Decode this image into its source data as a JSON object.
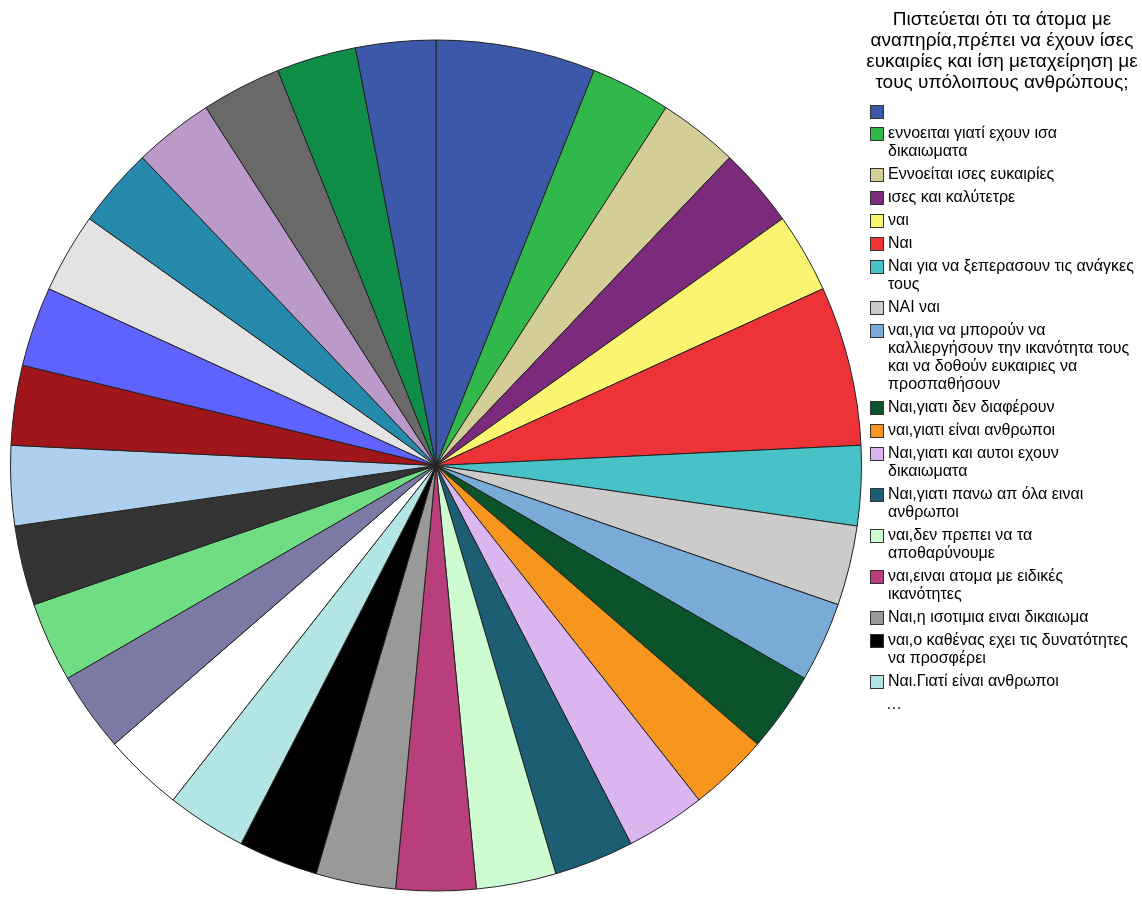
{
  "chart_data": {
    "type": "pie",
    "legend_title": "Πιστεύεται ότι τα άτομα με αναπηρία,πρέπει να έχουν ίσες ευκαιρίες και ίση μεταχείρηση με τους υπόλοιπους ανθρώπους;",
    "legend": "right",
    "categories": [
      null,
      "εννοειται γιατί εχουν ισα δικαιωματα",
      "Εννοείται ισες ευκαιρίες",
      "ισες και καλύτετρε",
      "ναι",
      "Ναι",
      "Ναι για να ξεπερασουν τις ανάγκες τους",
      "ΝΑΙ ναι",
      "ναι,για να μπορούν να καλλιεργήσουν την ικανότητα τους και να δοθούν ευκαιριες να προσπαθήσουν",
      "Ναι,γιατι δεν διαφέρουν",
      "ναι,γιατι είναι ανθρωποι",
      "Ναι,γιατι και αυτοι εχουν δικαιωματα",
      "Ναι,γιατι πανω απ όλα ειναι ανθρωποι",
      "ναι,δεν πρεπει να τα αποθαρύνουμε",
      "ναι,ειναι ατομα με ειδικές ικανότητες",
      "Ναι,η ισοτιμια ειναι δικαιωμα",
      "ναι,ο καθένας εχει τις δυνατότητες να προσφέρει",
      "Ναι.Γιατί είναι ανθρωποι",
      null,
      null,
      null,
      null,
      null,
      null,
      null,
      null,
      null,
      null,
      null,
      null,
      null
    ],
    "values": [
      6.06,
      3.03,
      3.03,
      3.03,
      3.03,
      6.06,
      3.03,
      3.03,
      3.03,
      3.03,
      3.03,
      3.03,
      3.03,
      3.03,
      3.03,
      3.03,
      3.03,
      3.03,
      3.03,
      3.03,
      3.03,
      3.03,
      3.03,
      3.03,
      3.03,
      3.03,
      3.03,
      3.03,
      3.03,
      3.03,
      3.03
    ],
    "colors": [
      "#3c58a8",
      "#32b74b",
      "#d3cd97",
      "#7b2a7c",
      "#f9f571",
      "#ee3338",
      "#48c2c7",
      "#cbcbcb",
      "#7aaad6",
      "#0a532b",
      "#f6961f",
      "#dbb5ef",
      "#1c5f75",
      "#ccfcd0",
      "#b93e7c",
      "#999999",
      "#000000",
      "#b3e5e5",
      "#ffffff",
      "#7a7aa5",
      "#70dd85",
      "#333333",
      "#aed0ee",
      "#a0161a",
      "#5e62ff",
      "#e3e3e3",
      "#2489aa",
      "#b99ac8",
      "#696969",
      "#108e47",
      "#3c58a8"
    ],
    "annotations": [
      "…"
    ]
  }
}
